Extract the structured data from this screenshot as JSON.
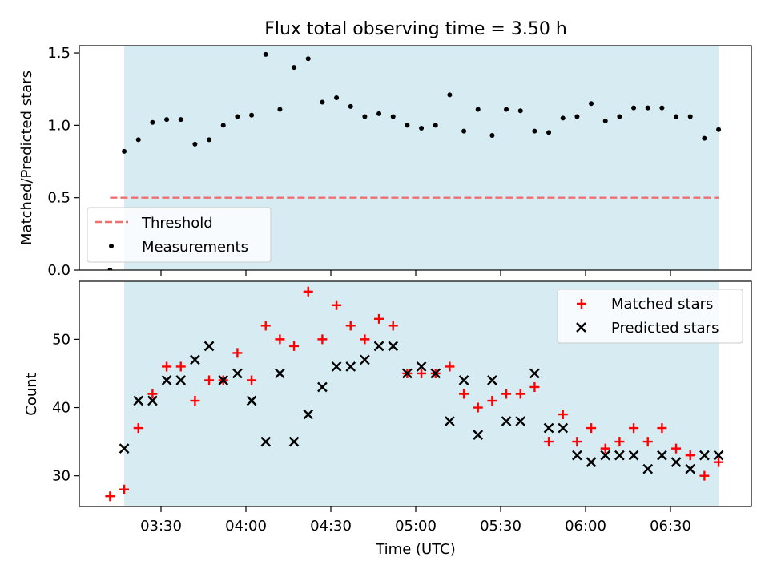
{
  "title": "Flux total observing time = 3.50 h",
  "colors": {
    "shade": "#add8e6",
    "threshold": "#f07070",
    "matched": "#ff0000",
    "predicted": "#000000",
    "measurement": "#000000"
  },
  "chart_data": [
    {
      "type": "scatter",
      "ylabel": "Matched/Predicted stars",
      "ylim": [
        0,
        1.55
      ],
      "yticks": [
        0.0,
        0.5,
        1.0,
        1.5
      ],
      "ytick_labels": [
        "0.0",
        "0.5",
        "1.0",
        "1.5"
      ],
      "xticks": [
        "03:30",
        "04:00",
        "04:30",
        "05:00",
        "05:30",
        "06:00",
        "06:30"
      ],
      "x_tick_labels_visible": false,
      "shaded_span": [
        "03:17",
        "06:47"
      ],
      "legend_position": "lower-left",
      "threshold": {
        "name": "Threshold",
        "value": 0.5,
        "x_range": [
          "03:12",
          "06:47"
        ],
        "style": "dashed"
      },
      "series": [
        {
          "name": "Measurements",
          "marker": "dot",
          "x": [
            "03:12",
            "03:17",
            "03:22",
            "03:27",
            "03:32",
            "03:37",
            "03:42",
            "03:47",
            "03:52",
            "03:57",
            "04:02",
            "04:07",
            "04:12",
            "04:17",
            "04:22",
            "04:27",
            "04:32",
            "04:37",
            "04:42",
            "04:47",
            "04:52",
            "04:57",
            "05:02",
            "05:07",
            "05:12",
            "05:17",
            "05:22",
            "05:27",
            "05:32",
            "05:37",
            "05:42",
            "05:47",
            "05:52",
            "05:57",
            "06:02",
            "06:07",
            "06:12",
            "06:17",
            "06:22",
            "06:27",
            "06:32",
            "06:37",
            "06:42",
            "06:47"
          ],
          "y": [
            0.0,
            0.82,
            0.9,
            1.02,
            1.04,
            1.04,
            0.87,
            0.9,
            1.0,
            1.06,
            1.07,
            1.49,
            1.11,
            1.4,
            1.46,
            1.16,
            1.19,
            1.13,
            1.06,
            1.08,
            1.06,
            1.0,
            0.98,
            1.0,
            1.21,
            0.96,
            1.11,
            0.93,
            1.11,
            1.1,
            0.96,
            0.95,
            1.05,
            1.06,
            1.15,
            1.03,
            1.06,
            1.12,
            1.12,
            1.12,
            1.06,
            1.06,
            0.91,
            0.97
          ]
        }
      ]
    },
    {
      "type": "scatter",
      "xlabel": "Time (UTC)",
      "ylabel": "Count",
      "ylim": [
        25.5,
        58.5
      ],
      "yticks": [
        30,
        40,
        50
      ],
      "ytick_labels": [
        "30",
        "40",
        "50"
      ],
      "xticks": [
        "03:30",
        "04:00",
        "04:30",
        "05:00",
        "05:30",
        "06:00",
        "06:30"
      ],
      "shaded_span": [
        "03:17",
        "06:47"
      ],
      "legend_position": "upper-right",
      "series": [
        {
          "name": "Matched stars",
          "marker": "plus",
          "x": [
            "03:12",
            "03:17",
            "03:22",
            "03:27",
            "03:32",
            "03:37",
            "03:42",
            "03:47",
            "03:52",
            "03:57",
            "04:02",
            "04:07",
            "04:12",
            "04:17",
            "04:22",
            "04:27",
            "04:32",
            "04:37",
            "04:42",
            "04:47",
            "04:52",
            "04:57",
            "05:02",
            "05:07",
            "05:12",
            "05:17",
            "05:22",
            "05:27",
            "05:32",
            "05:37",
            "05:42",
            "05:47",
            "05:52",
            "05:57",
            "06:02",
            "06:07",
            "06:12",
            "06:17",
            "06:22",
            "06:27",
            "06:32",
            "06:37",
            "06:42",
            "06:47"
          ],
          "y": [
            27,
            28,
            37,
            42,
            46,
            46,
            41,
            44,
            44,
            48,
            44,
            52,
            50,
            49,
            57,
            50,
            55,
            52,
            50,
            53,
            52,
            45,
            45,
            45,
            46,
            42,
            40,
            41,
            42,
            42,
            43,
            35,
            39,
            35,
            37,
            34,
            35,
            37,
            35,
            37,
            34,
            33,
            30,
            32
          ]
        },
        {
          "name": "Predicted stars",
          "marker": "x",
          "x": [
            "03:17",
            "03:22",
            "03:27",
            "03:32",
            "03:37",
            "03:42",
            "03:47",
            "03:52",
            "03:57",
            "04:02",
            "04:07",
            "04:12",
            "04:17",
            "04:22",
            "04:27",
            "04:32",
            "04:37",
            "04:42",
            "04:47",
            "04:52",
            "04:57",
            "05:02",
            "05:07",
            "05:12",
            "05:17",
            "05:22",
            "05:27",
            "05:32",
            "05:37",
            "05:42",
            "05:47",
            "05:52",
            "05:57",
            "06:02",
            "06:07",
            "06:12",
            "06:17",
            "06:22",
            "06:27",
            "06:32",
            "06:37",
            "06:42",
            "06:47"
          ],
          "y": [
            34,
            41,
            41,
            44,
            44,
            47,
            49,
            44,
            45,
            41,
            35,
            45,
            35,
            39,
            43,
            46,
            46,
            47,
            49,
            49,
            45,
            46,
            45,
            38,
            44,
            36,
            44,
            38,
            38,
            45,
            37,
            37,
            33,
            32,
            33,
            33,
            33,
            31,
            33,
            32,
            31,
            33,
            33
          ]
        }
      ]
    }
  ]
}
